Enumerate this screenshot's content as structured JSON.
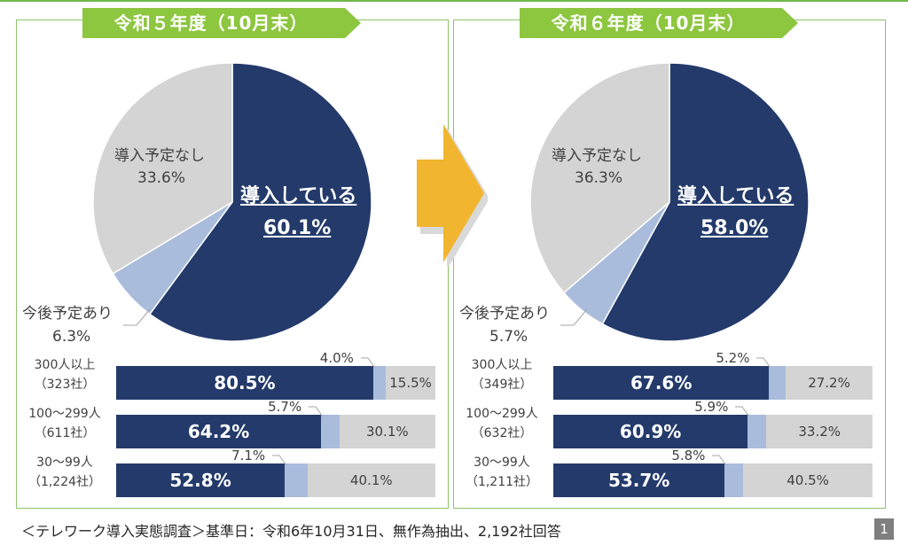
{
  "chart_data": [
    {
      "type": "pie",
      "title": "令和５年度（10月末）",
      "slices": [
        {
          "name": "導入している",
          "value": 60.1,
          "label": "60.1%",
          "color": "#233a6b"
        },
        {
          "name": "今後予定あり",
          "value": 6.3,
          "label": "6.3%",
          "color": "#a9bcdc"
        },
        {
          "name": "導入予定なし",
          "value": 33.6,
          "label": "33.6%",
          "color": "#d4d4d4"
        }
      ],
      "breakdown": {
        "type": "bar",
        "stacked": true,
        "orientation": "horizontal",
        "categories": [
          {
            "name": "300人以上",
            "count": "（323社）"
          },
          {
            "name": "100～299人",
            "count": "（611社）"
          },
          {
            "name": "30～99人",
            "count": "（1,224社）"
          }
        ],
        "series": [
          {
            "name": "導入している",
            "values": [
              80.5,
              64.2,
              52.8
            ],
            "labels": [
              "80.5%",
              "64.2%",
              "52.8%"
            ]
          },
          {
            "name": "今後予定あり",
            "values": [
              4.0,
              5.7,
              7.1
            ],
            "labels": [
              "4.0%",
              "5.7%",
              "7.1%"
            ]
          },
          {
            "name": "導入予定なし",
            "values": [
              15.5,
              30.1,
              40.1
            ],
            "labels": [
              "15.5%",
              "30.1%",
              "40.1%"
            ]
          }
        ]
      }
    },
    {
      "type": "pie",
      "title": "令和６年度（10月末）",
      "slices": [
        {
          "name": "導入している",
          "value": 58.0,
          "label": "58.0%",
          "color": "#233a6b"
        },
        {
          "name": "今後予定あり",
          "value": 5.7,
          "label": "5.7%",
          "color": "#a9bcdc"
        },
        {
          "name": "導入予定なし",
          "value": 36.3,
          "label": "36.3%",
          "color": "#d4d4d4"
        }
      ],
      "breakdown": {
        "type": "bar",
        "stacked": true,
        "orientation": "horizontal",
        "categories": [
          {
            "name": "300人以上",
            "count": "（349社）"
          },
          {
            "name": "100～299人",
            "count": "（632社）"
          },
          {
            "name": "30～99人",
            "count": "（1,211社）"
          }
        ],
        "series": [
          {
            "name": "導入している",
            "values": [
              67.6,
              60.9,
              53.7
            ],
            "labels": [
              "67.6%",
              "60.9%",
              "53.7%"
            ]
          },
          {
            "name": "今後予定あり",
            "values": [
              5.2,
              5.9,
              5.8
            ],
            "labels": [
              "5.2%",
              "5.9%",
              "5.8%"
            ]
          },
          {
            "name": "導入予定なし",
            "values": [
              27.2,
              33.2,
              40.5
            ],
            "labels": [
              "27.2%",
              "33.2%",
              "40.5%"
            ]
          }
        ]
      }
    }
  ],
  "colors": {
    "main": "#233a6b",
    "light": "#a9bcdc",
    "grey": "#d4d4d4",
    "banner": "#8dc63f",
    "arrow": "#f2b52f",
    "border": "#8cc56b"
  },
  "footer": "＜テレワーク導入実態調査＞基準日：令和6年10月31日、無作為抽出、2,192社回答",
  "page_number": "1",
  "arrow_icon": "right-arrow-icon"
}
